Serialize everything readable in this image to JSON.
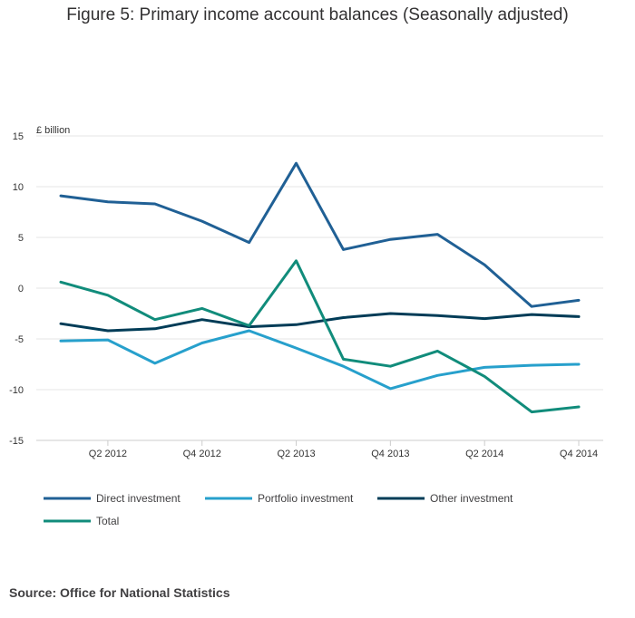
{
  "title": "Figure 5: Primary income account balances (Seasonally adjusted)",
  "source": "Source: Office for National Statistics",
  "chart_data": {
    "type": "line",
    "ylabel": "£ billion",
    "ylim": [
      -15,
      15
    ],
    "yticks": [
      -15,
      -10,
      -5,
      0,
      5,
      10,
      15
    ],
    "x": [
      "Q1 2012",
      "Q2 2012",
      "Q3 2012",
      "Q4 2012",
      "Q1 2013",
      "Q2 2013",
      "Q3 2013",
      "Q4 2013",
      "Q1 2014",
      "Q2 2014",
      "Q3 2014",
      "Q4 2014"
    ],
    "xtick_labels": [
      "Q2 2012",
      "Q4 2012",
      "Q2 2013",
      "Q4 2013",
      "Q2 2014",
      "Q4 2014"
    ],
    "grid": true,
    "legend_position": "bottom",
    "series": [
      {
        "name": "Direct investment",
        "color": "#206095",
        "values": [
          9.1,
          8.5,
          8.3,
          6.6,
          4.5,
          12.3,
          3.8,
          4.8,
          5.3,
          2.3,
          -1.8,
          -1.2
        ]
      },
      {
        "name": "Portfolio investment",
        "color": "#27a0cc",
        "values": [
          -5.2,
          -5.1,
          -7.4,
          -5.4,
          -4.2,
          -5.9,
          -7.7,
          -9.9,
          -8.6,
          -7.8,
          -7.6,
          -7.5
        ]
      },
      {
        "name": "Other investment",
        "color": "#003c57",
        "values": [
          -3.5,
          -4.2,
          -4.0,
          -3.1,
          -3.8,
          -3.6,
          -2.9,
          -2.5,
          -2.7,
          -3.0,
          -2.6,
          -2.8
        ]
      },
      {
        "name": "Total",
        "color": "#118c7b",
        "values": [
          0.6,
          -0.7,
          -3.1,
          -2.0,
          -3.7,
          2.7,
          -7.0,
          -7.7,
          -6.2,
          -8.7,
          -12.2,
          -11.7
        ]
      }
    ]
  }
}
